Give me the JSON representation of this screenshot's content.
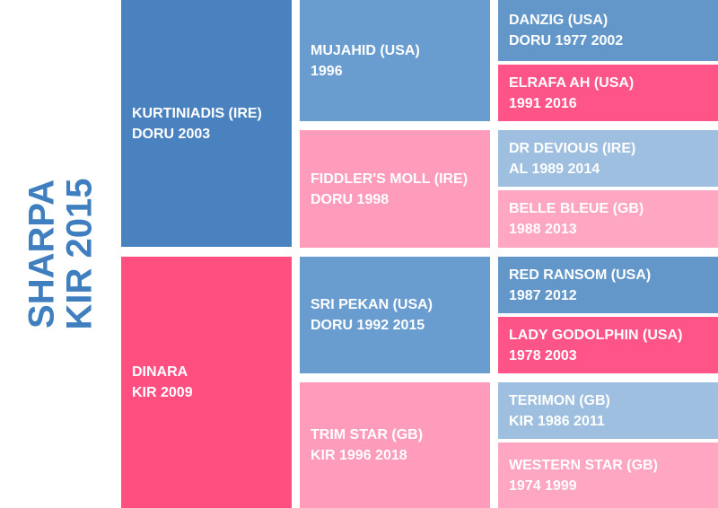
{
  "subject": {
    "name": "SHARPA",
    "line2": "KIR 2015"
  },
  "gen1": {
    "sire": {
      "name": "KURTINIADIS (IRE)",
      "details": "DORU 2003"
    },
    "dam": {
      "name": "DINARA",
      "details": "KIR 2009"
    }
  },
  "gen2": [
    {
      "name": "MUJAHID (USA)",
      "details": "1996"
    },
    {
      "name": "FIDDLER'S MOLL (IRE)",
      "details": "DORU 1998"
    },
    {
      "name": "SRI PEKAN (USA)",
      "details": "DORU 1992 2015"
    },
    {
      "name": "TRIM STAR (GB)",
      "details": "KIR 1996 2018"
    }
  ],
  "gen3": [
    {
      "name": "DANZIG (USA)",
      "details": "DORU 1977 2002"
    },
    {
      "name": "ELRAFA AH (USA)",
      "details": "1991 2016"
    },
    {
      "name": "DR DEVIOUS (IRE)",
      "details": "AL 1989 2014"
    },
    {
      "name": "BELLE BLEUE (GB)",
      "details": "1988 2013"
    },
    {
      "name": "RED RANSOM (USA)",
      "details": "1987 2012"
    },
    {
      "name": "LADY GODOLPHIN (USA)",
      "details": "1978 2003"
    },
    {
      "name": "TERIMON (GB)",
      "details": "KIR 1986 2011"
    },
    {
      "name": "WESTERN STAR (GB)",
      "details": "1974 1999"
    }
  ]
}
